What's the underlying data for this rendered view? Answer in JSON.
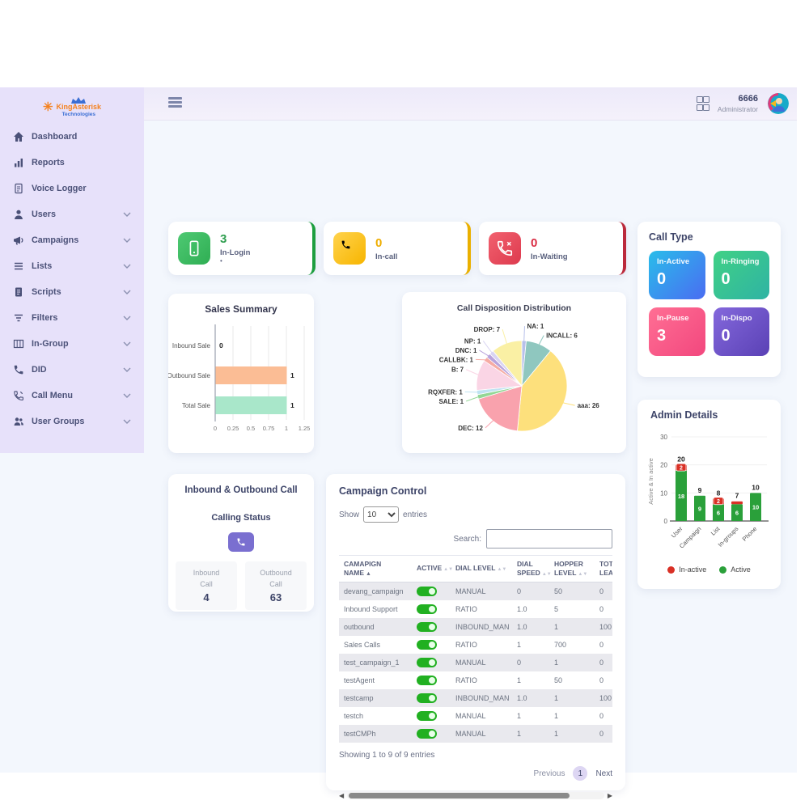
{
  "topbar": {
    "user_id": "6666",
    "user_role": "Administrator"
  },
  "sidebar": {
    "logo_title": "KingAsterisk",
    "logo_subtitle": "Technologies",
    "items": [
      {
        "label": "Dashboard",
        "icon": "home-icon",
        "expandable": false
      },
      {
        "label": "Reports",
        "icon": "bar-chart-icon",
        "expandable": false
      },
      {
        "label": "Voice Logger",
        "icon": "voice-logger-icon",
        "expandable": false
      },
      {
        "label": "Users",
        "icon": "user-icon",
        "expandable": true
      },
      {
        "label": "Campaigns",
        "icon": "megaphone-icon",
        "expandable": true
      },
      {
        "label": "Lists",
        "icon": "list-icon",
        "expandable": true
      },
      {
        "label": "Scripts",
        "icon": "script-icon",
        "expandable": true
      },
      {
        "label": "Filters",
        "icon": "filter-icon",
        "expandable": true
      },
      {
        "label": "In-Group",
        "icon": "table-icon",
        "expandable": true
      },
      {
        "label": "DID",
        "icon": "phone-icon",
        "expandable": true
      },
      {
        "label": "Call Menu",
        "icon": "call-menu-icon",
        "expandable": true
      },
      {
        "label": "User Groups",
        "icon": "user-group-icon",
        "expandable": true
      }
    ]
  },
  "stat_cards": [
    {
      "label": "In-Login",
      "value": "3",
      "dot": "•",
      "icon": "mobile-icon",
      "icon_g1": "#4ec973",
      "icon_g2": "#2fae53",
      "value_color": "#2f9e4f",
      "border_color": "#1d9e3f"
    },
    {
      "label": "In-call",
      "value": "0",
      "dot": "",
      "icon": "phone-icon",
      "icon_g1": "#ffd34d",
      "icon_g2": "#f7b500",
      "value_color": "#eead00",
      "border_color": "#eab000"
    },
    {
      "label": "In-Waiting",
      "value": "0",
      "dot": "",
      "icon": "phone-missed-icon",
      "icon_g1": "#f2616f",
      "icon_g2": "#dd3a4e",
      "value_color": "#d92b42",
      "border_color": "#bb2a3c"
    }
  ],
  "call_type": {
    "title": "Call Type",
    "tiles": [
      {
        "label": "In-Active",
        "value": "0",
        "g1": "#29bdea",
        "g2": "#4a6cf2"
      },
      {
        "label": "In-Ringing",
        "value": "0",
        "g1": "#40d185",
        "g2": "#2fb3a4"
      },
      {
        "label": "In-Pause",
        "value": "3",
        "g1": "#ff6f94",
        "g2": "#f2477e"
      },
      {
        "label": "In-Dispo",
        "value": "0",
        "g1": "#8468dc",
        "g2": "#5a41b5"
      }
    ]
  },
  "inbound_outbound": {
    "title": "Inbound & Outbound Call",
    "subtitle": "Calling Status",
    "boxes": [
      {
        "label": "Inbound Call",
        "value": "4"
      },
      {
        "label": "Outbound Call",
        "value": "63"
      }
    ]
  },
  "campaign_control": {
    "title": "Campaign Control",
    "show_label": "Show",
    "page_size": "10",
    "entries_label": "entries",
    "search_label": "Search:",
    "columns": [
      {
        "label": "CAMAPIGN NAME",
        "sorted": true
      },
      {
        "label": "ACTIVE",
        "sorted": false
      },
      {
        "label": "DIAL LEVEL",
        "sorted": false
      },
      {
        "label": "DIAL SPEED",
        "sorted": false
      },
      {
        "label": "HOPPER LEVEL",
        "sorted": false
      },
      {
        "label": "TOTAL LEADS",
        "sorted": false
      }
    ],
    "rows": [
      {
        "name": "devang_campaign",
        "active": true,
        "dial_level": "MANUAL",
        "dial_speed": "0",
        "hopper_level": "50",
        "total_leads": "0"
      },
      {
        "name": "Inbound Support",
        "active": true,
        "dial_level": "RATIO",
        "dial_speed": "1.0",
        "hopper_level": "5",
        "total_leads": "0"
      },
      {
        "name": "outbound",
        "active": true,
        "dial_level": "INBOUND_MAN",
        "dial_speed": "1.0",
        "hopper_level": "1",
        "total_leads": "100"
      },
      {
        "name": "Sales Calls",
        "active": true,
        "dial_level": "RATIO",
        "dial_speed": "1",
        "hopper_level": "700",
        "total_leads": "0"
      },
      {
        "name": "test_campaign_1",
        "active": true,
        "dial_level": "MANUAL",
        "dial_speed": "0",
        "hopper_level": "1",
        "total_leads": "0"
      },
      {
        "name": "testAgent",
        "active": true,
        "dial_level": "RATIO",
        "dial_speed": "1",
        "hopper_level": "50",
        "total_leads": "0"
      },
      {
        "name": "testcamp",
        "active": true,
        "dial_level": "INBOUND_MAN",
        "dial_speed": "1.0",
        "hopper_level": "1",
        "total_leads": "100"
      },
      {
        "name": "testch",
        "active": true,
        "dial_level": "MANUAL",
        "dial_speed": "1",
        "hopper_level": "1",
        "total_leads": "0"
      },
      {
        "name": "testCMPh",
        "active": true,
        "dial_level": "MANUAL",
        "dial_speed": "1",
        "hopper_level": "1",
        "total_leads": "0"
      }
    ],
    "footer": "Showing 1 to 9 of 9 entries",
    "pagination": {
      "previous": "Previous",
      "current": "1",
      "next": "Next"
    }
  },
  "chart_data": [
    {
      "type": "bar",
      "orientation": "horizontal",
      "title": "Sales Summary",
      "categories": [
        "Inbound Sale",
        "Outbound Sale",
        "Total Sale"
      ],
      "values": [
        0,
        1,
        1
      ],
      "colors": [
        "#fbbd95",
        "#fbbd95",
        "#a9e7ca"
      ],
      "xlim": [
        0,
        1.25
      ],
      "xticks": [
        0,
        0.25,
        0.5,
        0.75,
        1,
        1.25
      ],
      "grid": true
    },
    {
      "type": "pie",
      "title": "Call Disposition Distribution",
      "slices": [
        {
          "label": "NA",
          "value": 1,
          "color": "#b7c0ea"
        },
        {
          "label": "INCALL",
          "value": 6,
          "color": "#8fc7bf"
        },
        {
          "label": "aaa",
          "value": 26,
          "color": "#fde07c"
        },
        {
          "label": "DEC",
          "value": 12,
          "color": "#f9a2ad"
        },
        {
          "label": "SALE",
          "value": 1,
          "color": "#93d795"
        },
        {
          "label": "RQXFER",
          "value": 1,
          "color": "#bfe3f2"
        },
        {
          "label": "B",
          "value": 7,
          "color": "#fad5e5"
        },
        {
          "label": "CALLBK",
          "value": 1,
          "color": "#f6aba4"
        },
        {
          "label": "DNC",
          "value": 1,
          "color": "#b9a3dc"
        },
        {
          "label": "NP",
          "value": 1,
          "color": "#d9d4f2"
        },
        {
          "label": "DROP",
          "value": 7,
          "color": "#faf0a4"
        }
      ]
    },
    {
      "type": "bar",
      "stacked": true,
      "title": "Admin Details",
      "ylabel": "Active & In active",
      "categories": [
        "User",
        "Campaign",
        "List",
        "In-groups",
        "Phone"
      ],
      "series": [
        {
          "name": "Active",
          "color": "#2aa03a",
          "values": [
            18,
            9,
            6,
            6,
            10
          ]
        },
        {
          "name": "In-active",
          "color": "#d93025",
          "values": [
            2,
            0,
            2,
            1,
            0
          ]
        }
      ],
      "totals": [
        20,
        9,
        8,
        7,
        10
      ],
      "ylim": [
        0,
        30
      ],
      "yticks": [
        0,
        10,
        20,
        30
      ],
      "legend": [
        {
          "label": "In-active",
          "color": "#d93025"
        },
        {
          "label": "Active",
          "color": "#2aa03a"
        }
      ]
    }
  ]
}
